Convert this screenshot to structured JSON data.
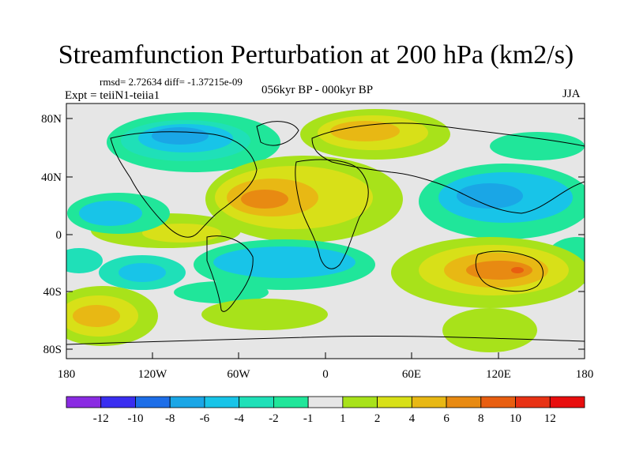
{
  "title": "Streamfunction Perturbation at 200 hPa (km2/s)",
  "stats": "rmsd= 2.72634 diff= -1.37215e-09",
  "experiment": "Expt = teiiN1-teiia1",
  "period": "056kyr BP - 000kyr BP",
  "season": "JJA",
  "lat_labels": [
    "80N",
    "40N",
    "0",
    "40S",
    "80S"
  ],
  "lon_labels": [
    "180",
    "120W",
    "60W",
    "0",
    "60E",
    "120E",
    "180"
  ],
  "colorbar": {
    "labels": [
      "-12",
      "-10",
      "-8",
      "-6",
      "-4",
      "-2",
      "-1",
      "1",
      "2",
      "4",
      "6",
      "8",
      "10",
      "12"
    ],
    "colors": [
      "#8a2be2",
      "#3a2ef0",
      "#1d6ee8",
      "#1aa6e6",
      "#18c4e8",
      "#1fe0b8",
      "#20e69a",
      "#e6e6e6",
      "#a8e21a",
      "#d8e018",
      "#e8b814",
      "#e88a12",
      "#e85e10",
      "#e83214",
      "#e80e0e"
    ]
  }
}
